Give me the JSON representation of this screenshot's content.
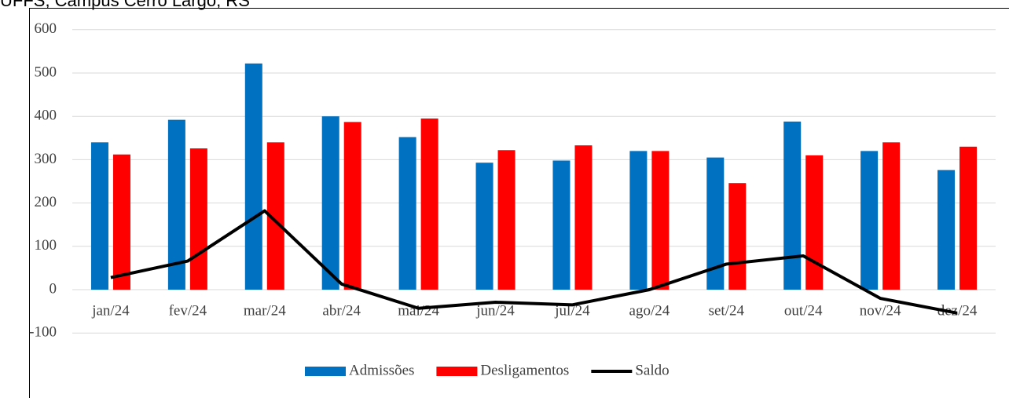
{
  "chart_data": {
    "type": "bar",
    "title": "UFFS, Campus Cerro Largo, RS",
    "categories": [
      "jan/24",
      "fev/24",
      "mar/24",
      "abr/24",
      "mai/24",
      "jun/24",
      "jul/24",
      "ago/24",
      "set/24",
      "out/24",
      "nov/24",
      "dez/24"
    ],
    "series": [
      {
        "name": "Admissões",
        "type": "bar",
        "color": "#0070c0",
        "values": [
          340,
          392,
          522,
          400,
          352,
          293,
          298,
          320,
          305,
          388,
          320,
          276
        ]
      },
      {
        "name": "Desligamentos",
        "type": "bar",
        "color": "#ff0000",
        "values": [
          312,
          326,
          340,
          387,
          395,
          322,
          333,
          320,
          246,
          310,
          340,
          330
        ]
      },
      {
        "name": "Saldo",
        "type": "line",
        "color": "#000000",
        "values": [
          28,
          66,
          182,
          13,
          -43,
          -29,
          -35,
          0,
          59,
          78,
          -20,
          -54
        ]
      }
    ],
    "ylim": [
      -100,
      600
    ],
    "yticks": [
      -100,
      0,
      100,
      200,
      300,
      400,
      500,
      600
    ],
    "grid": true,
    "legend": "bottom"
  }
}
